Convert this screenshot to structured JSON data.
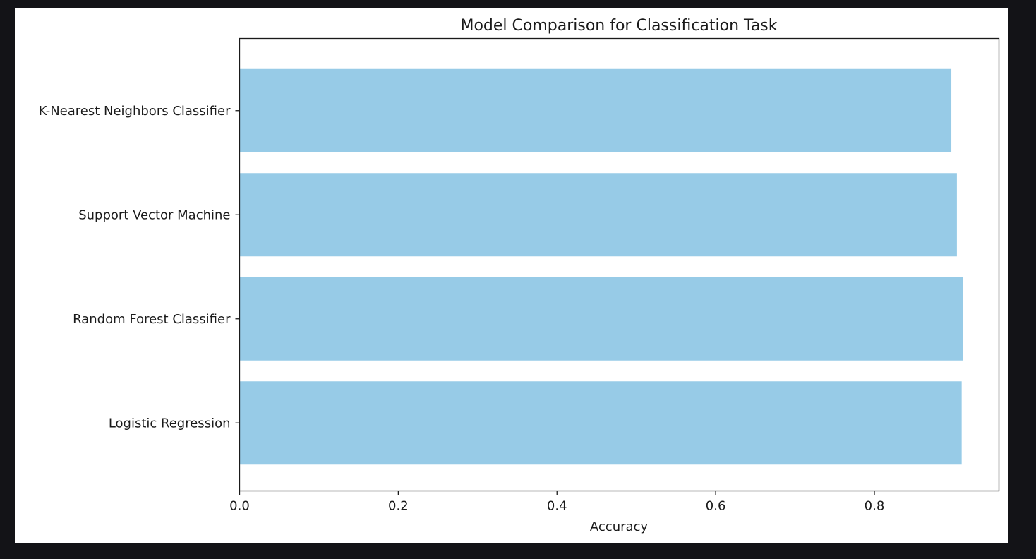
{
  "chart_data": {
    "type": "bar",
    "orientation": "horizontal",
    "title": "Model Comparison for Classification Task",
    "xlabel": "Accuracy",
    "ylabel": "",
    "xlim": [
      0,
      0.957
    ],
    "xticks": [
      "0.0",
      "0.2",
      "0.4",
      "0.6",
      "0.8"
    ],
    "categories": [
      "Logistic Regression",
      "Random Forest Classifier",
      "Support Vector Machine",
      "K-Nearest Neighbors Classifier"
    ],
    "values": [
      0.91,
      0.912,
      0.904,
      0.897
    ],
    "bar_color": "#97cbe7",
    "grid": false,
    "legend": "none"
  }
}
